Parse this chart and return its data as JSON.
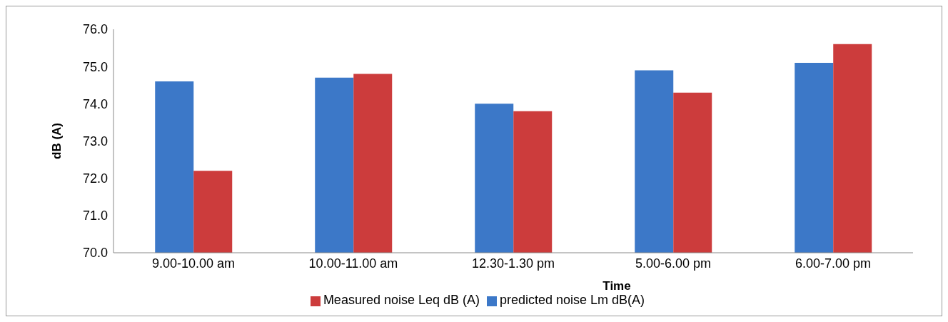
{
  "chart_data": {
    "type": "bar",
    "xlabel": "Time",
    "ylabel": "dB (A)",
    "categories": [
      "9.00-10.00 am",
      "10.00-11.00 am",
      "12.30-1.30 pm",
      "5.00-6.00 pm",
      "6.00-7.00 pm"
    ],
    "series": [
      {
        "name": "predicted noise Lm dB(A)",
        "color": "#3c78c8",
        "values": [
          74.6,
          74.7,
          74.0,
          74.9,
          75.1
        ]
      },
      {
        "name": "Measured noise Leq dB (A)",
        "color": "#cc3c3c",
        "values": [
          72.2,
          74.8,
          73.8,
          74.3,
          75.6
        ]
      }
    ],
    "ylim": [
      70,
      76
    ],
    "yticks": [
      {
        "value": 70,
        "label": "70.0"
      },
      {
        "value": 71,
        "label": "71.0"
      },
      {
        "value": 72,
        "label": "72.0"
      },
      {
        "value": 73,
        "label": "73.0"
      },
      {
        "value": 74,
        "label": "74.0"
      },
      {
        "value": 75,
        "label": "75.0"
      },
      {
        "value": 76,
        "label": "76.0"
      }
    ],
    "grid": false,
    "legend": "bottom"
  }
}
